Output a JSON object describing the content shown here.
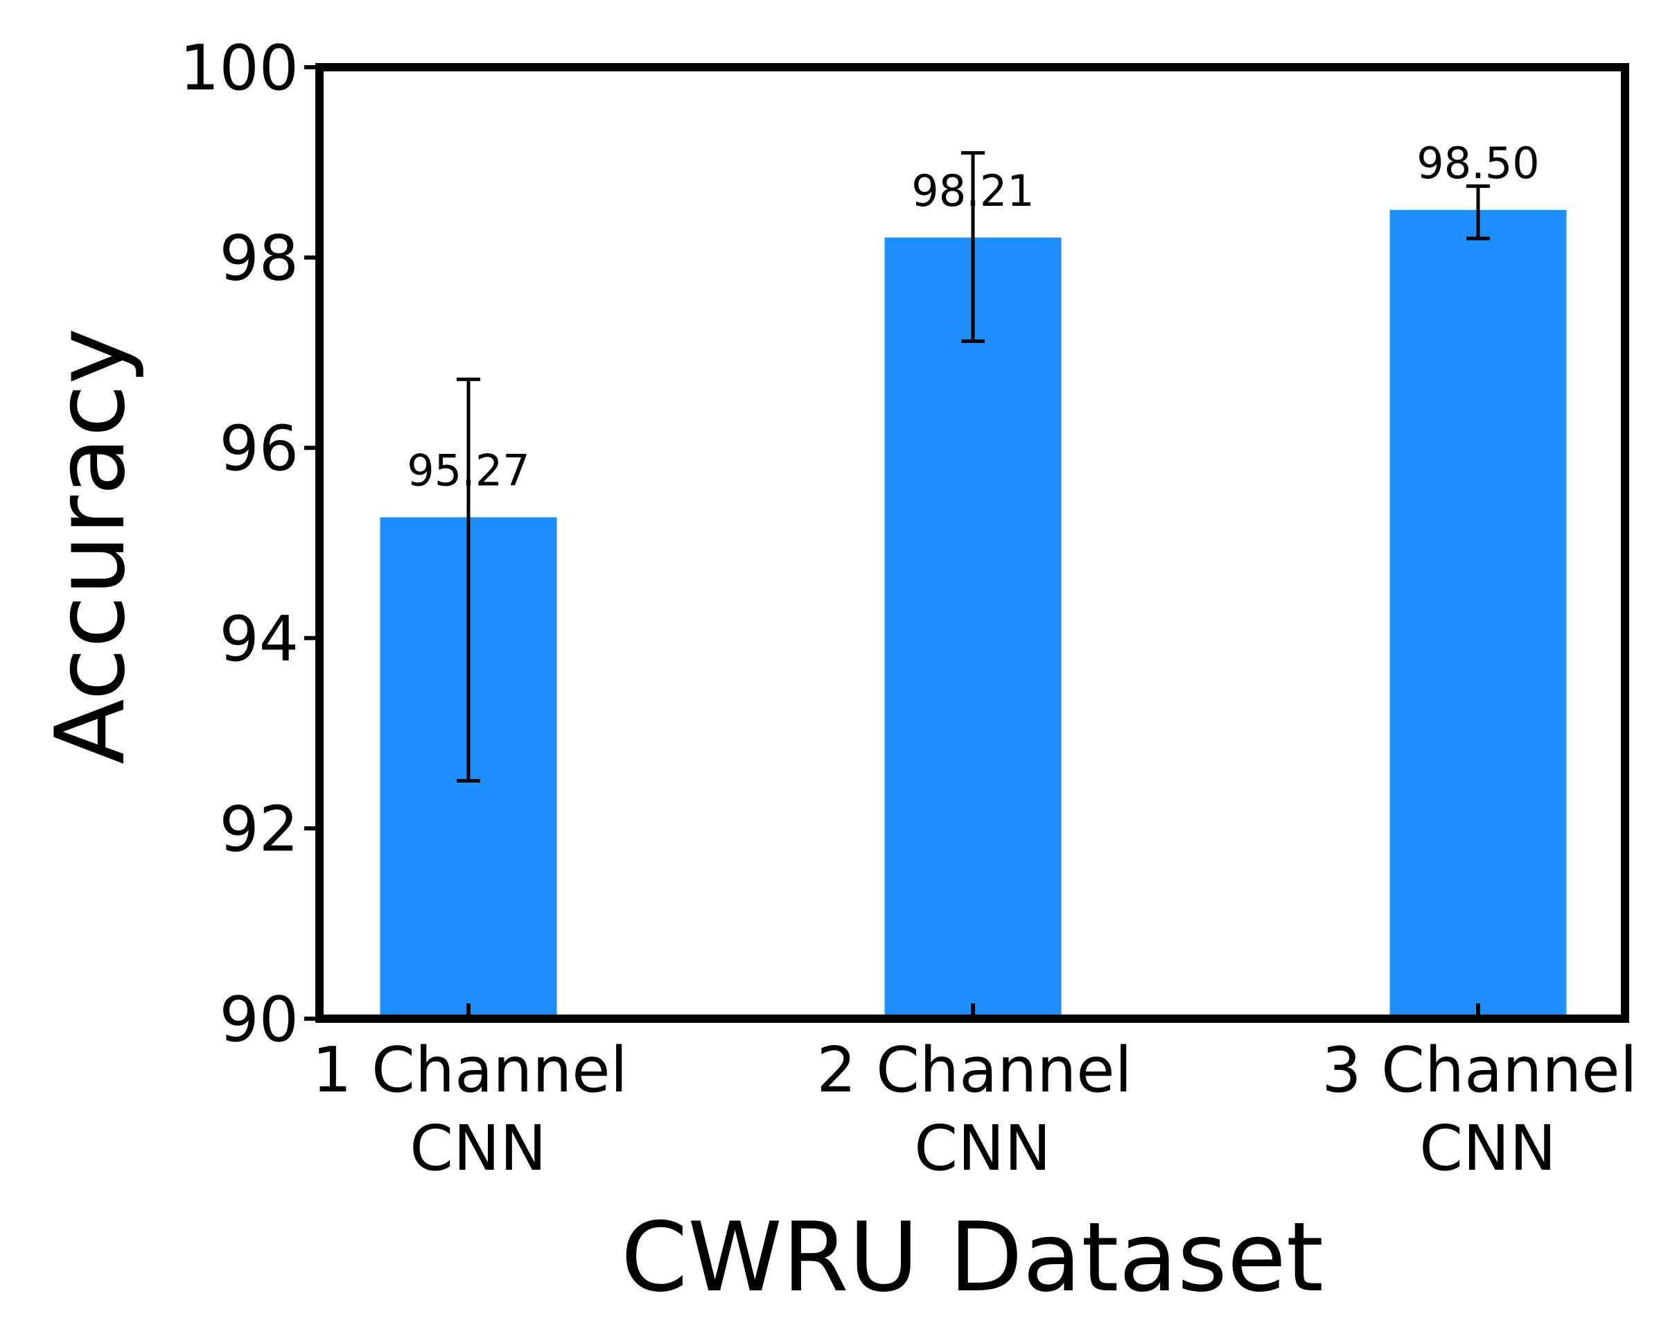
{
  "chart_data": {
    "type": "bar",
    "xlabel": "CWRU Dataset",
    "ylabel": "Accuracy",
    "ylim": [
      90,
      100
    ],
    "yticks": [
      90,
      92,
      94,
      96,
      98,
      100
    ],
    "categories": [
      [
        "1 Channel",
        "CNN"
      ],
      [
        "2 Channel",
        "CNN"
      ],
      [
        "3 Channel",
        "CNN"
      ]
    ],
    "values": [
      95.27,
      98.21,
      98.5
    ],
    "value_labels": [
      "95.27",
      "98.21",
      "98.50"
    ],
    "error_low": [
      92.5,
      97.12,
      98.2
    ],
    "error_high": [
      96.72,
      99.1,
      98.75
    ],
    "bar_color": "#1f8ffd",
    "grid": false,
    "legend": "none"
  }
}
